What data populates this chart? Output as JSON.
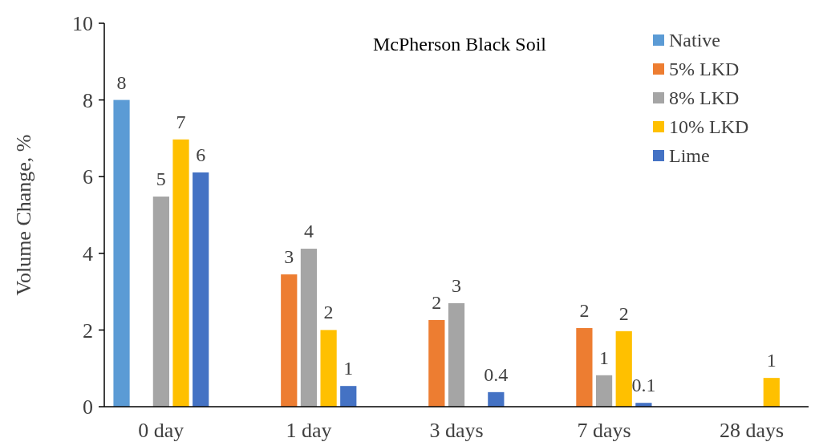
{
  "chart_data": {
    "type": "bar",
    "title": "McPherson Black Soil",
    "ylabel": "Volume Change, %",
    "categories": [
      "0 day",
      "1 day",
      "3 days",
      "7 days",
      "28 days"
    ],
    "series": [
      {
        "name": "Native",
        "color": "#5b9bd5",
        "values": [
          8.0,
          null,
          null,
          null,
          null
        ],
        "value_labels": [
          "8",
          null,
          null,
          null,
          null
        ]
      },
      {
        "name": "5% LKD",
        "color": "#ed7d31",
        "values": [
          null,
          3.45,
          2.26,
          2.05,
          null
        ],
        "value_labels": [
          null,
          "3",
          "2",
          "2",
          null
        ]
      },
      {
        "name": "8% LKD",
        "color": "#a5a5a5",
        "values": [
          5.48,
          4.12,
          2.7,
          0.82,
          null
        ],
        "value_labels": [
          "5",
          "4",
          "3",
          "1",
          null
        ]
      },
      {
        "name": "10% LKD",
        "color": "#ffc000",
        "values": [
          6.97,
          2.0,
          null,
          1.97,
          0.75
        ],
        "value_labels": [
          "7",
          "2",
          null,
          "2",
          "1"
        ]
      },
      {
        "name": "Lime",
        "color": "#4472c4",
        "values": [
          6.11,
          0.54,
          0.38,
          0.1,
          null
        ],
        "value_labels": [
          "6",
          "1",
          "0.4",
          "0.1",
          null
        ]
      }
    ],
    "ylim": [
      0,
      10
    ],
    "yticks": [
      0,
      2,
      4,
      6,
      8,
      10
    ],
    "grid": false,
    "legend": "top right"
  }
}
